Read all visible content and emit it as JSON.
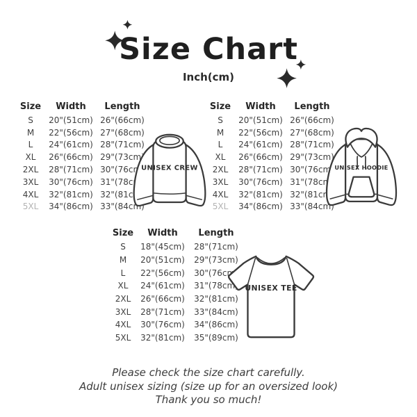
{
  "title": "Size Chart",
  "subtitle": "Inch(cm)",
  "tables": [
    {
      "name": "Unisex Crew",
      "garment_label": "UNISEX CREW",
      "headers": [
        "Size",
        "Width",
        "Length"
      ],
      "rows": [
        {
          "size": "S",
          "width": "20\"(51cm)",
          "length": "26\"(66cm)"
        },
        {
          "size": "M",
          "width": "22\"(56cm)",
          "length": "27\"(68cm)"
        },
        {
          "size": "L",
          "width": "24\"(61cm)",
          "length": "28\"(71cm)"
        },
        {
          "size": "XL",
          "width": "26\"(66cm)",
          "length": "29\"(73cm)"
        },
        {
          "size": "2XL",
          "width": "28\"(71cm)",
          "length": "30\"(76cm)"
        },
        {
          "size": "3XL",
          "width": "30\"(76cm)",
          "length": "31\"(78cm)"
        },
        {
          "size": "4XL",
          "width": "32\"(81cm)",
          "length": "32\"(81cm)"
        },
        {
          "size": "5XL",
          "width": "34\"(86cm)",
          "length": "33\"(84cm)",
          "muted_size": true
        }
      ]
    },
    {
      "name": "Unisex Hoodie",
      "garment_label": "UNISEX HOODIE",
      "headers": [
        "Size",
        "Width",
        "Length"
      ],
      "rows": [
        {
          "size": "S",
          "width": "20\"(51cm)",
          "length": "26\"(66cm)"
        },
        {
          "size": "M",
          "width": "22\"(56cm)",
          "length": "27\"(68cm)"
        },
        {
          "size": "L",
          "width": "24\"(61cm)",
          "length": "28\"(71cm)"
        },
        {
          "size": "XL",
          "width": "26\"(66cm)",
          "length": "29\"(73cm)"
        },
        {
          "size": "2XL",
          "width": "28\"(71cm)",
          "length": "30\"(76cm)"
        },
        {
          "size": "3XL",
          "width": "30\"(76cm)",
          "length": "31\"(78cm)"
        },
        {
          "size": "4XL",
          "width": "32\"(81cm)",
          "length": "32\"(81cm)"
        },
        {
          "size": "5XL",
          "width": "34\"(86cm)",
          "length": "33\"(84cm)",
          "muted_size": true
        }
      ]
    },
    {
      "name": "Unisex Tee",
      "garment_label": "UNISEX TEE",
      "headers": [
        "Size",
        "Width",
        "Length"
      ],
      "rows": [
        {
          "size": "S",
          "width": "18\"(45cm)",
          "length": "28\"(71cm)"
        },
        {
          "size": "M",
          "width": "20\"(51cm)",
          "length": "29\"(73cm)"
        },
        {
          "size": "L",
          "width": "22\"(56cm)",
          "length": "30\"(76cm)"
        },
        {
          "size": "XL",
          "width": "24\"(61cm)",
          "length": "31\"(78cm)"
        },
        {
          "size": "2XL",
          "width": "26\"(66cm)",
          "length": "32\"(81cm)"
        },
        {
          "size": "3XL",
          "width": "28\"(71cm)",
          "length": "33\"(84cm)"
        },
        {
          "size": "4XL",
          "width": "30\"(76cm)",
          "length": "34\"(86cm)"
        },
        {
          "size": "5XL",
          "width": "32\"(81cm)",
          "length": "35\"(89cm)"
        }
      ]
    }
  ],
  "footer": {
    "lines": [
      "Please check the size chart carefully.",
      "Adult unisex sizing (size up for an oversized look)",
      "Thank you so much!"
    ]
  },
  "icons": {
    "sparkle": "✦"
  },
  "colors": {
    "background": "#ffffff",
    "title_ink": "#1f1f1f",
    "table_ink": "#3f3f3f",
    "muted_size": "#b3b3b3",
    "line_art": "#3a3a3a"
  }
}
